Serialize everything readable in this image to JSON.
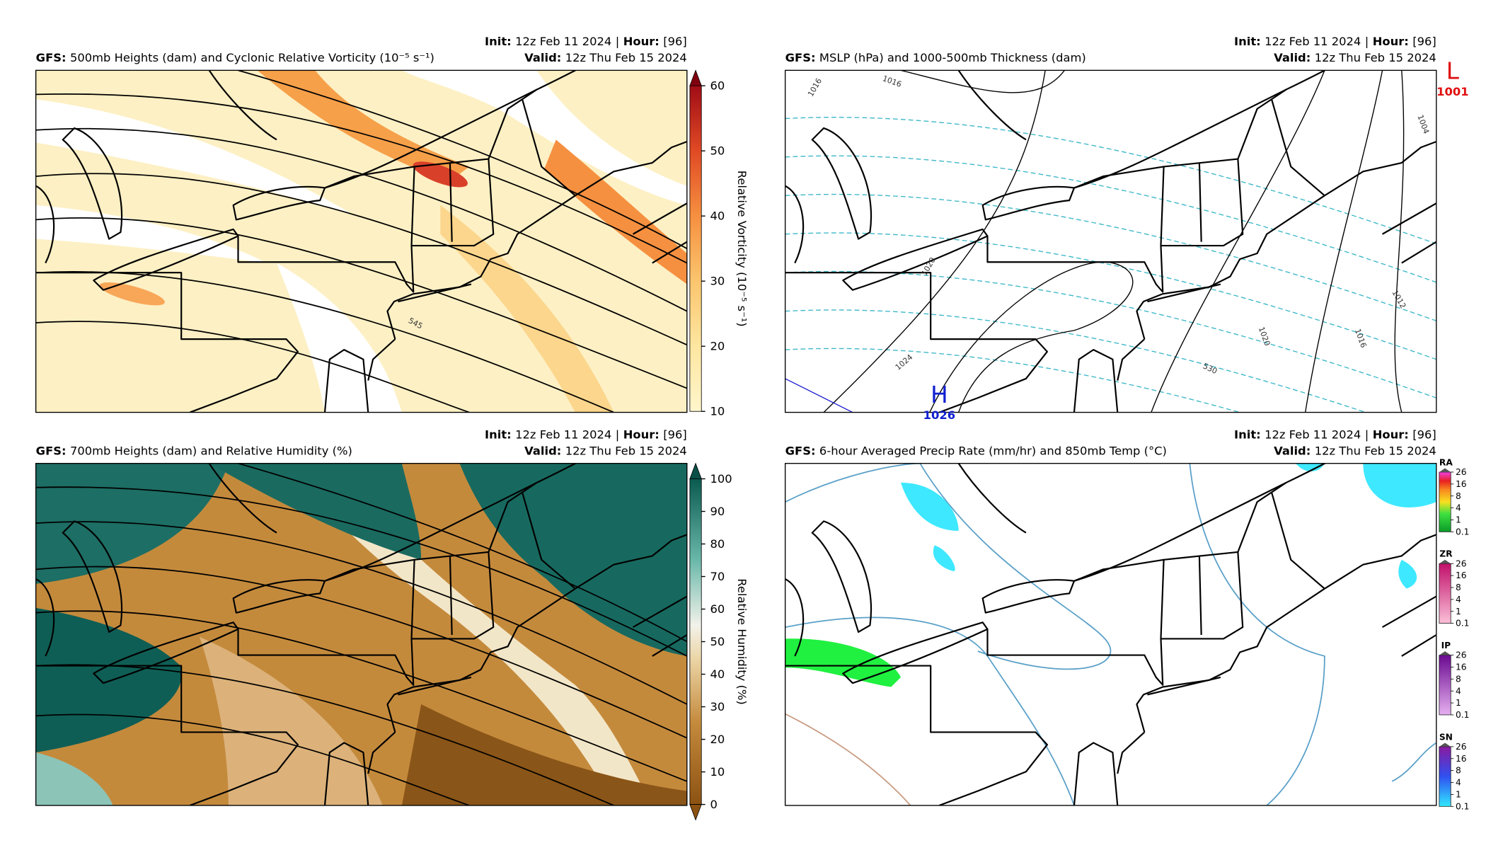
{
  "panels": [
    {
      "model": "GFS:",
      "title": "500mb Heights (dam) and Cyclonic Relative Vorticity (10⁻⁵ s⁻¹)",
      "init": {
        "label": "Init:",
        "value": "12z Feb 11 2024"
      },
      "divider": "|",
      "hour": {
        "label": "Hour:",
        "value": "[96]"
      },
      "valid": {
        "label": "Valid:",
        "value": "12z Thu Feb 15 2024"
      },
      "colorbar": {
        "label": "Relative Vorticity (10⁻⁵ s⁻¹)",
        "ticks": [
          10,
          20,
          30,
          40,
          50,
          60
        ]
      },
      "contour_labels": [
        "545"
      ]
    },
    {
      "model": "GFS:",
      "title": "MSLP (hPa) and 1000-500mb Thickness (dam)",
      "init": {
        "label": "Init:",
        "value": "12z Feb 11 2024"
      },
      "divider": "|",
      "hour": {
        "label": "Hour:",
        "value": "[96]"
      },
      "valid": {
        "label": "Valid:",
        "value": "12z Thu Feb 15 2024"
      },
      "pressure_centers": [
        {
          "symbol": "L",
          "value": "1001"
        },
        {
          "symbol": "H",
          "value": "1026"
        }
      ],
      "contour_labels": [
        "1016",
        "1016",
        "1004",
        "1012",
        "1016",
        "1020",
        "1024",
        "1020",
        "530"
      ]
    },
    {
      "model": "GFS:",
      "title": "700mb Heights (dam) and Relative Humidity (%)",
      "init": {
        "label": "Init:",
        "value": "12z Feb 11 2024"
      },
      "divider": "|",
      "hour": {
        "label": "Hour:",
        "value": "[96]"
      },
      "valid": {
        "label": "Valid:",
        "value": "12z Thu Feb 15 2024"
      },
      "colorbar": {
        "label": "Relative Humidity (%)",
        "ticks": [
          0,
          10,
          20,
          30,
          40,
          50,
          60,
          70,
          80,
          90,
          100
        ]
      }
    },
    {
      "model": "GFS:",
      "title": "6-hour Averaged Precip Rate (mm/hr) and 850mb Temp (°C)",
      "init": {
        "label": "Init:",
        "value": "12z Feb 11 2024"
      },
      "divider": "|",
      "hour": {
        "label": "Hour:",
        "value": "[96]"
      },
      "valid": {
        "label": "Valid:",
        "value": "12z Thu Feb 15 2024"
      },
      "precip_bars": [
        {
          "name": "RA",
          "ticks": [
            26,
            16,
            8,
            4,
            1,
            0.1
          ]
        },
        {
          "name": "ZR",
          "ticks": [
            26,
            16,
            8,
            4,
            1,
            0.1
          ]
        },
        {
          "name": "IP",
          "ticks": [
            26,
            16,
            8,
            4,
            1,
            0.1
          ]
        },
        {
          "name": "SN",
          "ticks": [
            26,
            16,
            8,
            4,
            1,
            0.1
          ]
        }
      ]
    }
  ]
}
